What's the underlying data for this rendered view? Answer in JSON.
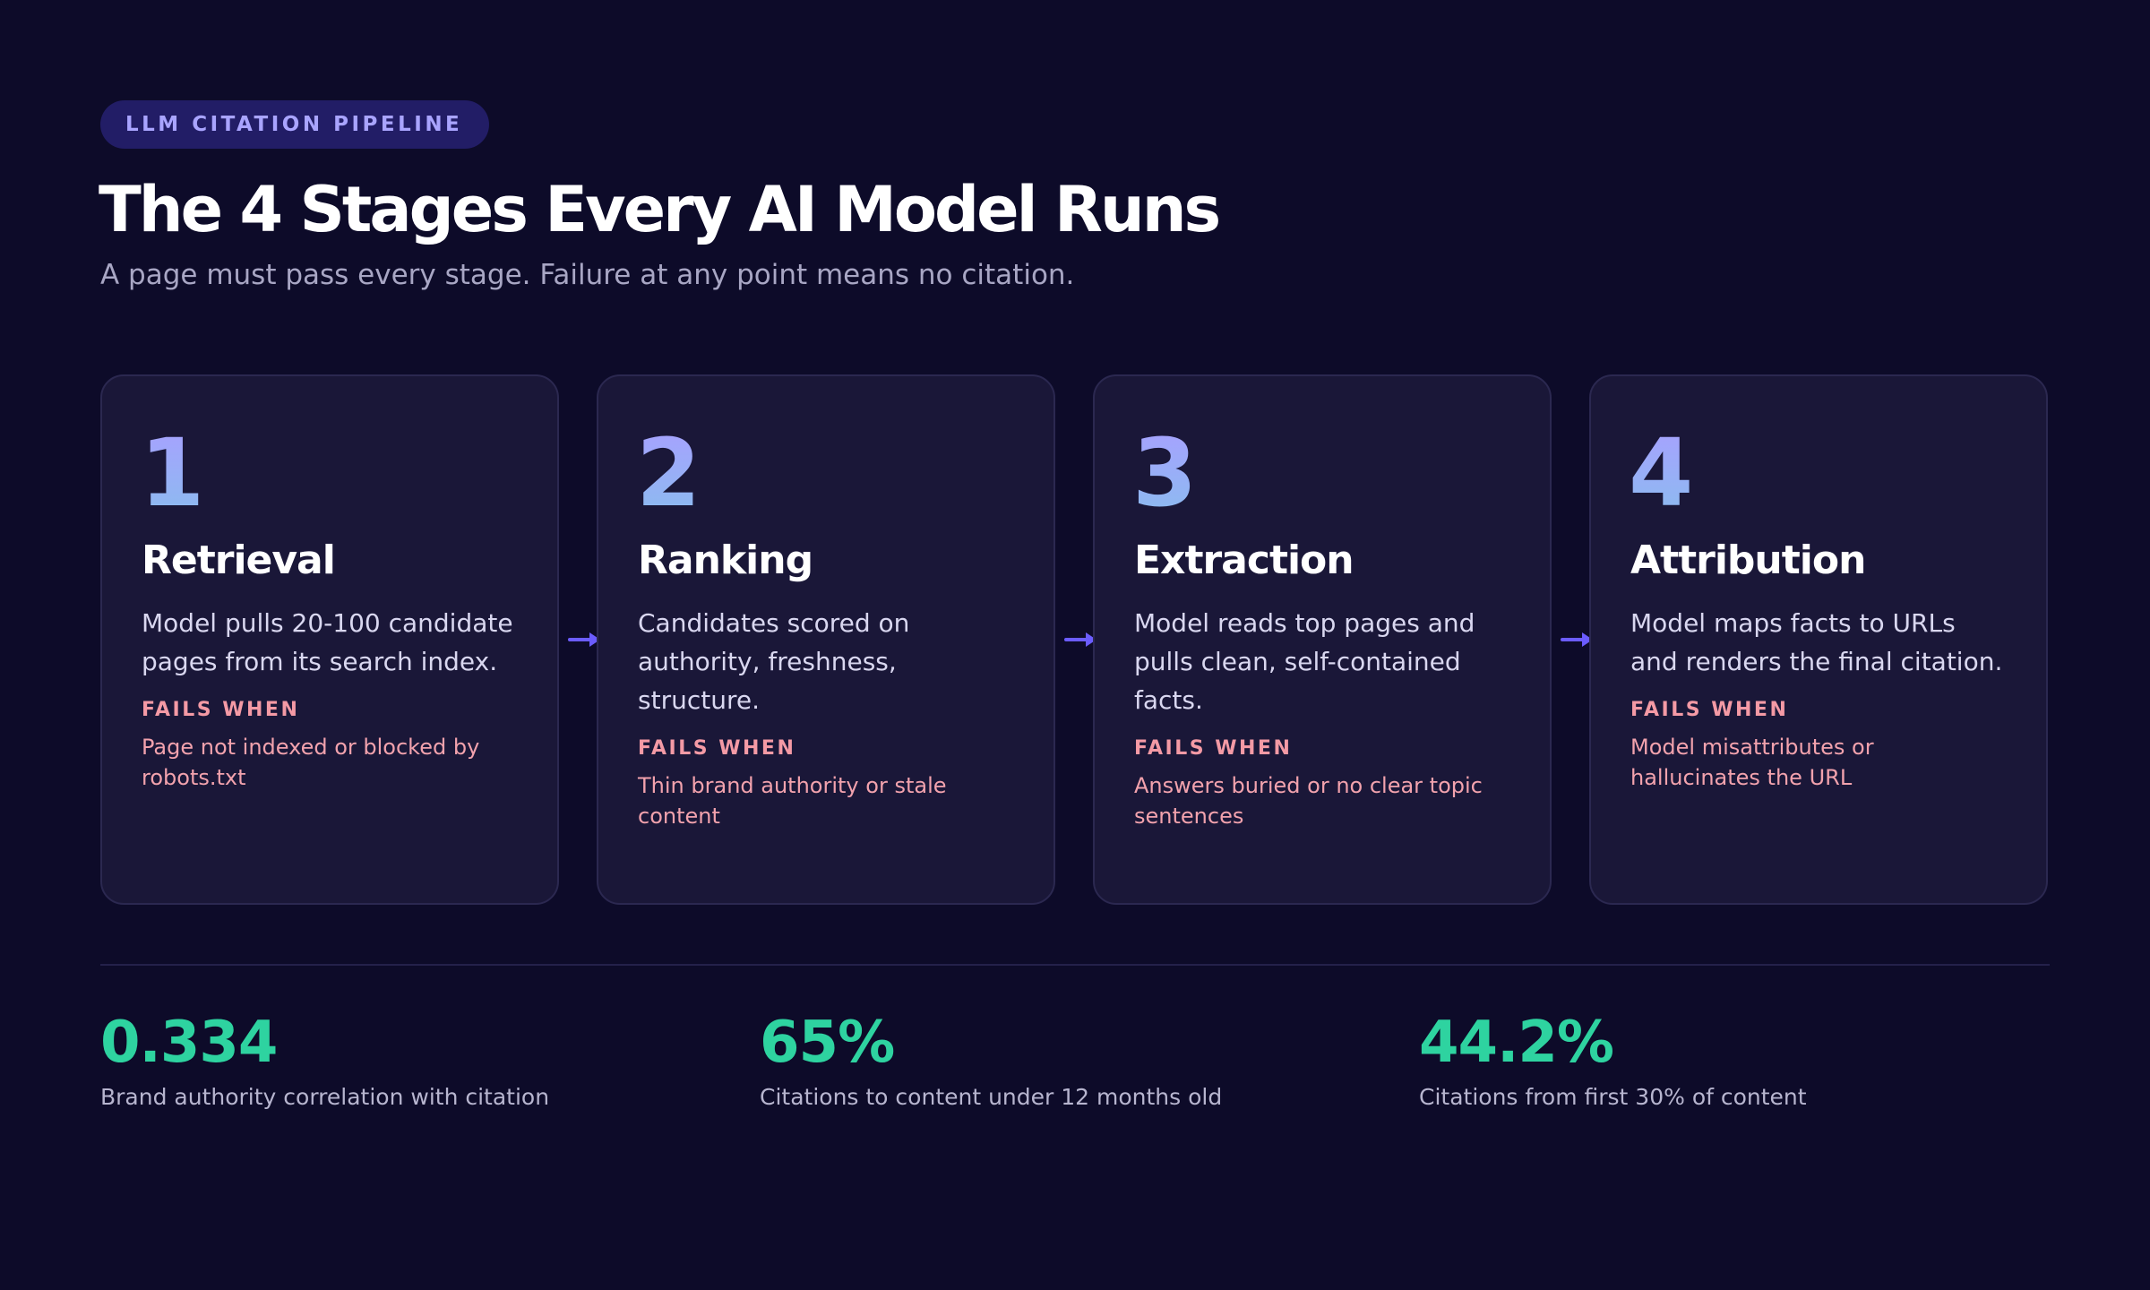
{
  "header": {
    "eyebrow": "LLM CITATION PIPELINE",
    "title": "The 4 Stages Every AI Model Runs",
    "subtitle": "A page must pass every stage. Failure at any point means no citation."
  },
  "stages": [
    {
      "number": "1",
      "title": "Retrieval",
      "description": "Model pulls 20-100 candidate pages from its search index.",
      "fails_label": "FAILS WHEN",
      "fails_text": "Page not indexed or blocked by robots.txt"
    },
    {
      "number": "2",
      "title": "Ranking",
      "description": "Candidates scored on authority, freshness, structure.",
      "fails_label": "FAILS WHEN",
      "fails_text": "Thin brand authority or stale content"
    },
    {
      "number": "3",
      "title": "Extraction",
      "description": "Model reads top pages and pulls clean, self-contained facts.",
      "fails_label": "FAILS WHEN",
      "fails_text": "Answers buried or no clear topic sentences"
    },
    {
      "number": "4",
      "title": "Attribution",
      "description": "Model maps facts to URLs and renders the final citation.",
      "fails_label": "FAILS WHEN",
      "fails_text": "Model misattributes or hallucinates the URL"
    }
  ],
  "stats": [
    {
      "value": "0.334",
      "label": "Brand authority correlation with citation"
    },
    {
      "value": "65%",
      "label": "Citations to content under 12 months old"
    },
    {
      "value": "44.2%",
      "label": "Citations from first 30% of content"
    }
  ],
  "colors": {
    "background": "#0d0b29",
    "card": "#1a1738",
    "accent": "#6b5cff",
    "fail": "#f49aa5",
    "stat": "#2ed3a0"
  }
}
